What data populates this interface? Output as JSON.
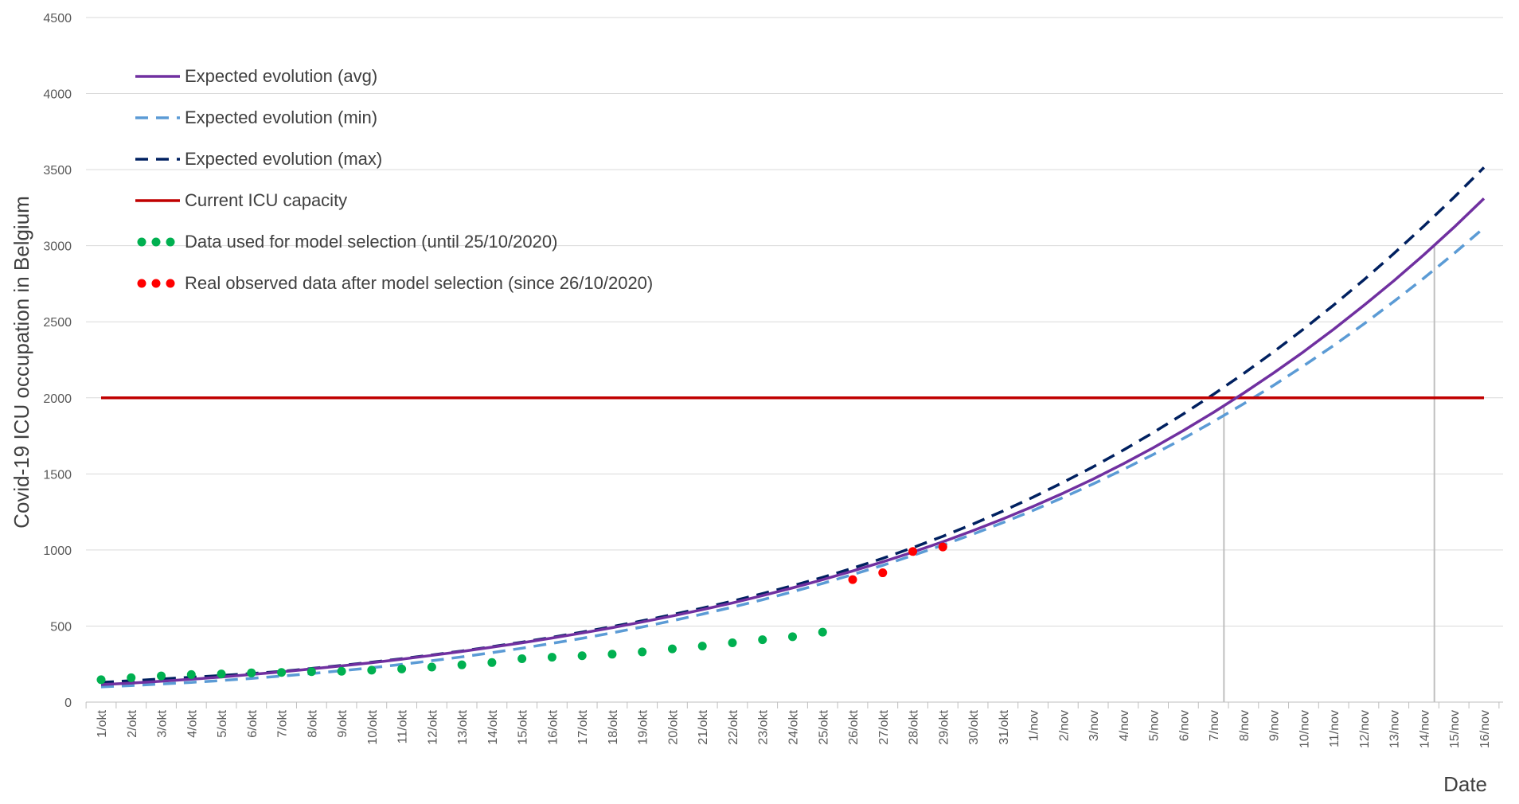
{
  "chart_data": {
    "type": "line",
    "title": "",
    "xlabel": "Date",
    "ylabel": "Covid-19 ICU occupation in Belgium",
    "ylim": [
      0,
      4500
    ],
    "yticks": [
      0,
      500,
      1000,
      1500,
      2000,
      2500,
      3000,
      3500,
      4000,
      4500
    ],
    "grid": true,
    "legend_position": "top-left",
    "categories": [
      "1/okt",
      "2/okt",
      "3/okt",
      "4/okt",
      "5/okt",
      "6/okt",
      "7/okt",
      "8/okt",
      "9/okt",
      "10/okt",
      "11/okt",
      "12/okt",
      "13/okt",
      "14/okt",
      "15/okt",
      "16/okt",
      "17/okt",
      "18/okt",
      "19/okt",
      "20/okt",
      "21/okt",
      "22/okt",
      "23/okt",
      "24/okt",
      "25/okt",
      "26/okt",
      "27/okt",
      "28/okt",
      "29/okt",
      "30/okt",
      "31/okt",
      "1/nov",
      "2/nov",
      "3/nov",
      "4/nov",
      "5/nov",
      "6/nov",
      "7/nov",
      "8/nov",
      "9/nov",
      "10/nov",
      "11/nov",
      "12/nov",
      "13/nov",
      "14/nov",
      "15/nov",
      "16/nov"
    ],
    "series": [
      {
        "name": "Expected evolution (avg)",
        "style": "solid",
        "color": "#7030A0",
        "values": [
          115,
          125,
          137,
          150,
          165,
          182,
          199,
          218,
          238,
          259,
          282,
          307,
          333,
          361,
          390,
          421,
          454,
          489,
          527,
          566,
          608,
          652,
          700,
          751,
          805,
          862,
          922,
          986,
          1054,
          1127,
          1204,
          1286,
          1373,
          1466,
          1566,
          1672,
          1785,
          1904,
          2030,
          2163,
          2303,
          2451,
          2607,
          2769,
          2940,
          3120,
          3310
        ]
      },
      {
        "name": "Expected evolution (min)",
        "style": "dashed",
        "color": "#5B9BD5",
        "values": [
          100,
          109,
          119,
          130,
          142,
          156,
          171,
          188,
          206,
          226,
          248,
          272,
          297,
          325,
          354,
          386,
          419,
          455,
          494,
          535,
          578,
          624,
          673,
          725,
          780,
          838,
          899,
          964,
          1032,
          1104,
          1180,
          1260,
          1345,
          1434,
          1529,
          1628,
          1733,
          1844,
          1960,
          2082,
          2210,
          2344,
          2485,
          2633,
          2787,
          2948,
          3117
        ]
      },
      {
        "name": "Expected evolution (max)",
        "style": "dashed",
        "color": "#002060",
        "values": [
          130,
          141,
          152,
          163,
          175,
          188,
          202,
          221,
          241,
          262,
          285,
          310,
          336,
          364,
          394,
          426,
          460,
          496,
          534,
          575,
          618,
          664,
          713,
          765,
          820,
          880,
          945,
          1015,
          1090,
          1170,
          1256,
          1347,
          1444,
          1547,
          1656,
          1772,
          1894,
          2023,
          2159,
          2302,
          2452,
          2610,
          2775,
          2948,
          3129,
          3317,
          3514
        ]
      },
      {
        "name": "Current ICU capacity",
        "style": "solid",
        "color": "#C00000",
        "values": [
          2000,
          2000,
          2000,
          2000,
          2000,
          2000,
          2000,
          2000,
          2000,
          2000,
          2000,
          2000,
          2000,
          2000,
          2000,
          2000,
          2000,
          2000,
          2000,
          2000,
          2000,
          2000,
          2000,
          2000,
          2000,
          2000,
          2000,
          2000,
          2000,
          2000,
          2000,
          2000,
          2000,
          2000,
          2000,
          2000,
          2000,
          2000,
          2000,
          2000,
          2000,
          2000,
          2000,
          2000,
          2000,
          2000,
          2000
        ]
      },
      {
        "name": "Data used for  model selection (until 25/10/2020)",
        "style": "dots",
        "color": "#00B050",
        "x": [
          "1/okt",
          "2/okt",
          "3/okt",
          "4/okt",
          "5/okt",
          "6/okt",
          "7/okt",
          "8/okt",
          "9/okt",
          "10/okt",
          "11/okt",
          "12/okt",
          "13/okt",
          "14/okt",
          "15/okt",
          "16/okt",
          "17/okt",
          "18/okt",
          "19/okt",
          "20/okt",
          "21/okt",
          "22/okt",
          "23/okt",
          "24/okt",
          "25/okt"
        ],
        "values": [
          147,
          160,
          172,
          181,
          185,
          192,
          195,
          200,
          203,
          210,
          218,
          230,
          245,
          260,
          285,
          295,
          305,
          315,
          330,
          350,
          368,
          390,
          410,
          430,
          460
        ]
      },
      {
        "name": "Real observed data after model selection (since 26/10/2020)",
        "style": "dots",
        "color": "#FF0000",
        "x": [
          "26/okt",
          "27/okt",
          "28/okt",
          "29/okt"
        ],
        "values": [
          805,
          850,
          990,
          1020
        ]
      }
    ],
    "annotations": [
      {
        "type": "vertical-line",
        "x": "7/nov",
        "label": ""
      },
      {
        "type": "vertical-line",
        "x": "14/nov",
        "label": ""
      }
    ]
  }
}
